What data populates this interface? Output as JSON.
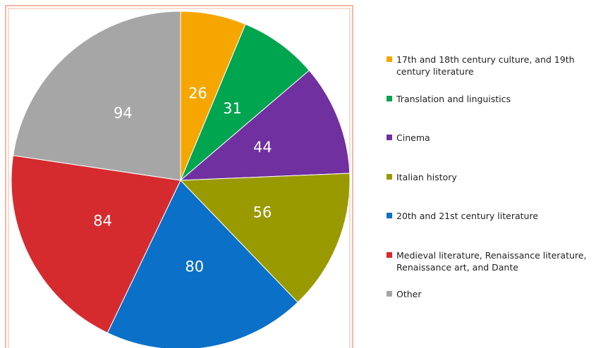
{
  "chart_data": {
    "type": "pie",
    "categories": [
      "17th and 18th century culture, and 19th century literature",
      "Translation and linguistics",
      "Cinema",
      "Italian history",
      "20th and 21st century literature",
      "Medieval literature, Renaissance literature, Renaissance art, and Dante",
      "Other"
    ],
    "values": [
      26,
      31,
      44,
      56,
      80,
      84,
      94
    ],
    "colors": [
      "#f5a700",
      "#00a54f",
      "#7030a0",
      "#999a00",
      "#0a70c8",
      "#d62b2e",
      "#a6a6a6"
    ],
    "legend": "right"
  }
}
